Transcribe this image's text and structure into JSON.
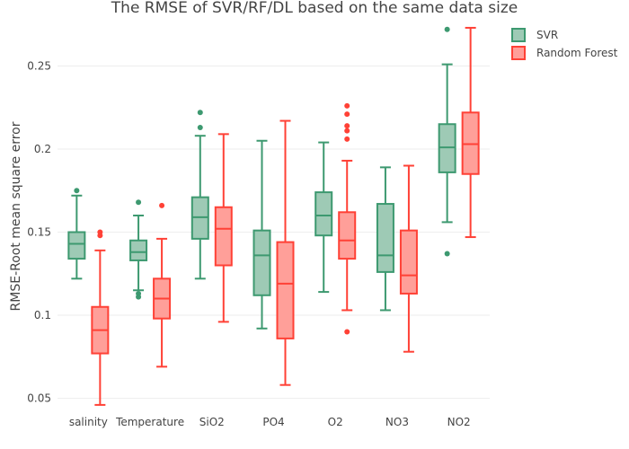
{
  "chart_data": {
    "type": "box",
    "title": "The RMSE of SVR/RF/DL based on the same data size",
    "xlabel": "",
    "ylabel": "RMSE-Root mean square error",
    "ylim": [
      0.04,
      0.28
    ],
    "yticks": [
      0.05,
      0.1,
      0.15,
      0.2,
      0.25
    ],
    "ytick_labels": [
      "0.05",
      "0.1",
      "0.15",
      "0.2",
      "0.25"
    ],
    "grid": true,
    "legend_position": "top-right",
    "categories": [
      "salinity",
      "Temperature",
      "SiO2",
      "PO4",
      "O2",
      "NO3",
      "NO2"
    ],
    "series": [
      {
        "name": "SVR",
        "color": "#3d9970",
        "fill": "#9ecab5",
        "boxes": [
          {
            "min": 0.122,
            "q1": 0.134,
            "median": 0.143,
            "q3": 0.15,
            "max": 0.172,
            "outliers": [
              0.175
            ]
          },
          {
            "min": 0.115,
            "q1": 0.133,
            "median": 0.138,
            "q3": 0.145,
            "max": 0.16,
            "outliers": [
              0.168,
              0.113,
              0.111
            ]
          },
          {
            "min": 0.122,
            "q1": 0.146,
            "median": 0.159,
            "q3": 0.171,
            "max": 0.208,
            "outliers": [
              0.213,
              0.222
            ]
          },
          {
            "min": 0.092,
            "q1": 0.112,
            "median": 0.136,
            "q3": 0.151,
            "max": 0.205,
            "outliers": []
          },
          {
            "min": 0.114,
            "q1": 0.148,
            "median": 0.16,
            "q3": 0.174,
            "max": 0.204,
            "outliers": []
          },
          {
            "min": 0.103,
            "q1": 0.126,
            "median": 0.136,
            "q3": 0.167,
            "max": 0.189,
            "outliers": []
          },
          {
            "min": 0.156,
            "q1": 0.186,
            "median": 0.201,
            "q3": 0.215,
            "max": 0.251,
            "outliers": [
              0.137,
              0.272
            ]
          }
        ]
      },
      {
        "name": "Random Forest",
        "color": "#ff4136",
        "fill": "#ff9f99",
        "boxes": [
          {
            "min": 0.046,
            "q1": 0.077,
            "median": 0.091,
            "q3": 0.105,
            "max": 0.139,
            "outliers": [
              0.148,
              0.15
            ]
          },
          {
            "min": 0.069,
            "q1": 0.098,
            "median": 0.11,
            "q3": 0.122,
            "max": 0.146,
            "outliers": [
              0.166
            ]
          },
          {
            "min": 0.096,
            "q1": 0.13,
            "median": 0.152,
            "q3": 0.165,
            "max": 0.209,
            "outliers": []
          },
          {
            "min": 0.058,
            "q1": 0.086,
            "median": 0.119,
            "q3": 0.144,
            "max": 0.217,
            "outliers": []
          },
          {
            "min": 0.103,
            "q1": 0.134,
            "median": 0.145,
            "q3": 0.162,
            "max": 0.193,
            "outliers": [
              0.09,
              0.206,
              0.211,
              0.214,
              0.221,
              0.226
            ]
          },
          {
            "min": 0.078,
            "q1": 0.113,
            "median": 0.124,
            "q3": 0.151,
            "max": 0.19,
            "outliers": []
          },
          {
            "min": 0.147,
            "q1": 0.185,
            "median": 0.203,
            "q3": 0.222,
            "max": 0.273,
            "outliers": []
          }
        ]
      }
    ]
  }
}
